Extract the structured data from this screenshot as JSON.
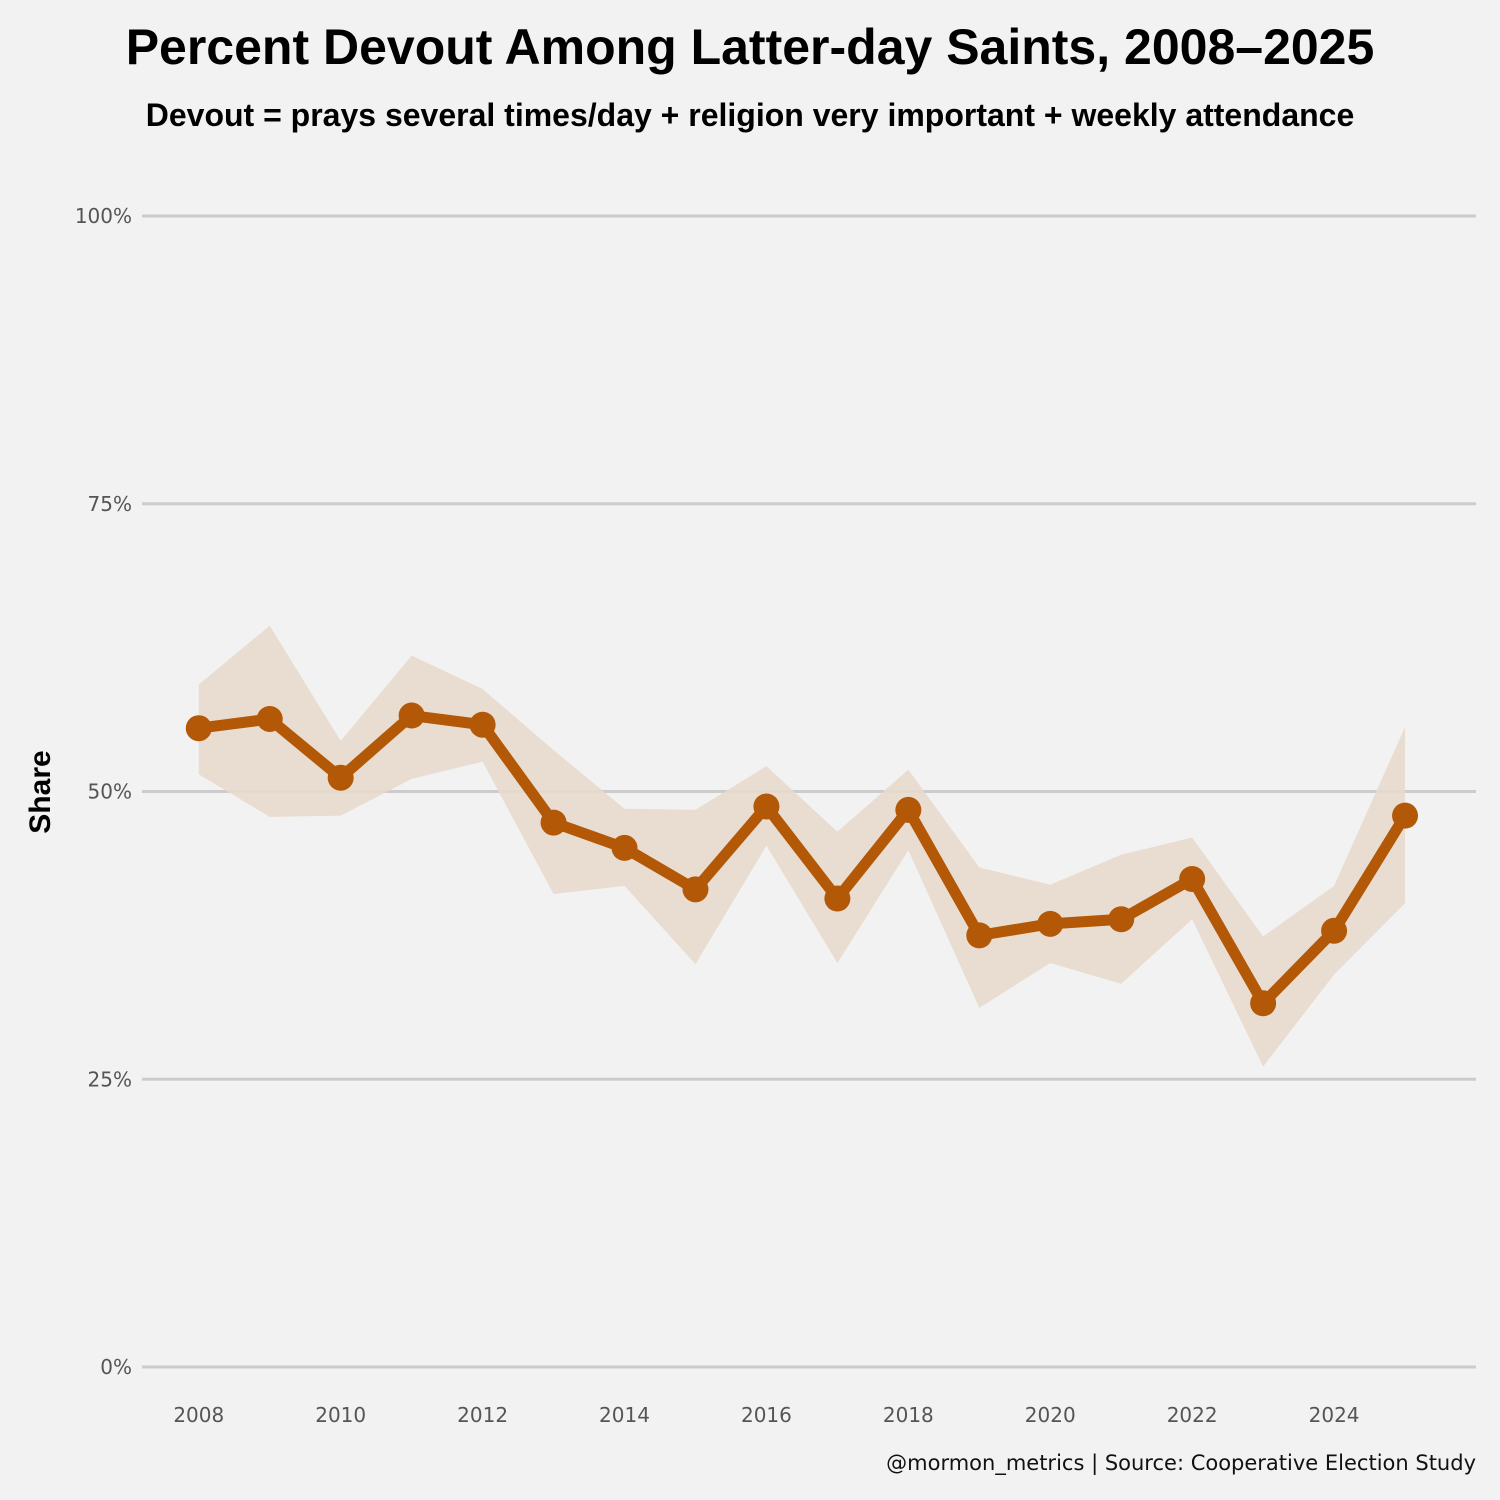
{
  "chart_data": {
    "type": "line",
    "title": "Percent Devout Among Latter-day Saints, 2008–2025",
    "subtitle": "Devout = prays several times/day + religion very important + weekly attendance",
    "ylabel": "Share",
    "xlabel": "",
    "caption": "@mormon_metrics | Source: Cooperative Election Study",
    "ylim": [
      0,
      100
    ],
    "xlim": [
      2007.2,
      2026.0
    ],
    "yticks": [
      0,
      25,
      50,
      75,
      100
    ],
    "ytick_labels": [
      "0%",
      "25%",
      "50%",
      "75%",
      "100%"
    ],
    "xticks": [
      2008,
      2010,
      2012,
      2014,
      2016,
      2018,
      2020,
      2022,
      2024
    ],
    "xtick_labels": [
      "2008",
      "2010",
      "2012",
      "2014",
      "2016",
      "2018",
      "2020",
      "2022",
      "2024"
    ],
    "grid": true,
    "line_color": "#b35806",
    "band_color": "#e8d9cc",
    "series": [
      {
        "name": "Devout",
        "x": [
          2008,
          2009,
          2010,
          2011,
          2012,
          2013,
          2014,
          2015,
          2016,
          2017,
          2018,
          2019,
          2020,
          2021,
          2022,
          2023,
          2024,
          2025
        ],
        "values": [
          55.5,
          56.3,
          51.2,
          56.6,
          55.8,
          47.3,
          45.1,
          41.5,
          48.7,
          40.7,
          48.4,
          37.5,
          38.5,
          38.9,
          42.4,
          31.6,
          37.9,
          47.9
        ],
        "lower": [
          51.5,
          47.8,
          47.9,
          51.1,
          52.6,
          41.1,
          41.8,
          35.0,
          45.3,
          35.1,
          44.9,
          31.2,
          35.1,
          33.3,
          38.9,
          26.1,
          34.1,
          40.3
        ],
        "upper": [
          59.3,
          64.4,
          54.4,
          61.8,
          58.9,
          53.6,
          48.5,
          48.4,
          52.2,
          46.5,
          51.9,
          43.4,
          41.9,
          44.5,
          46.0,
          37.4,
          41.8,
          55.6
        ]
      }
    ]
  }
}
